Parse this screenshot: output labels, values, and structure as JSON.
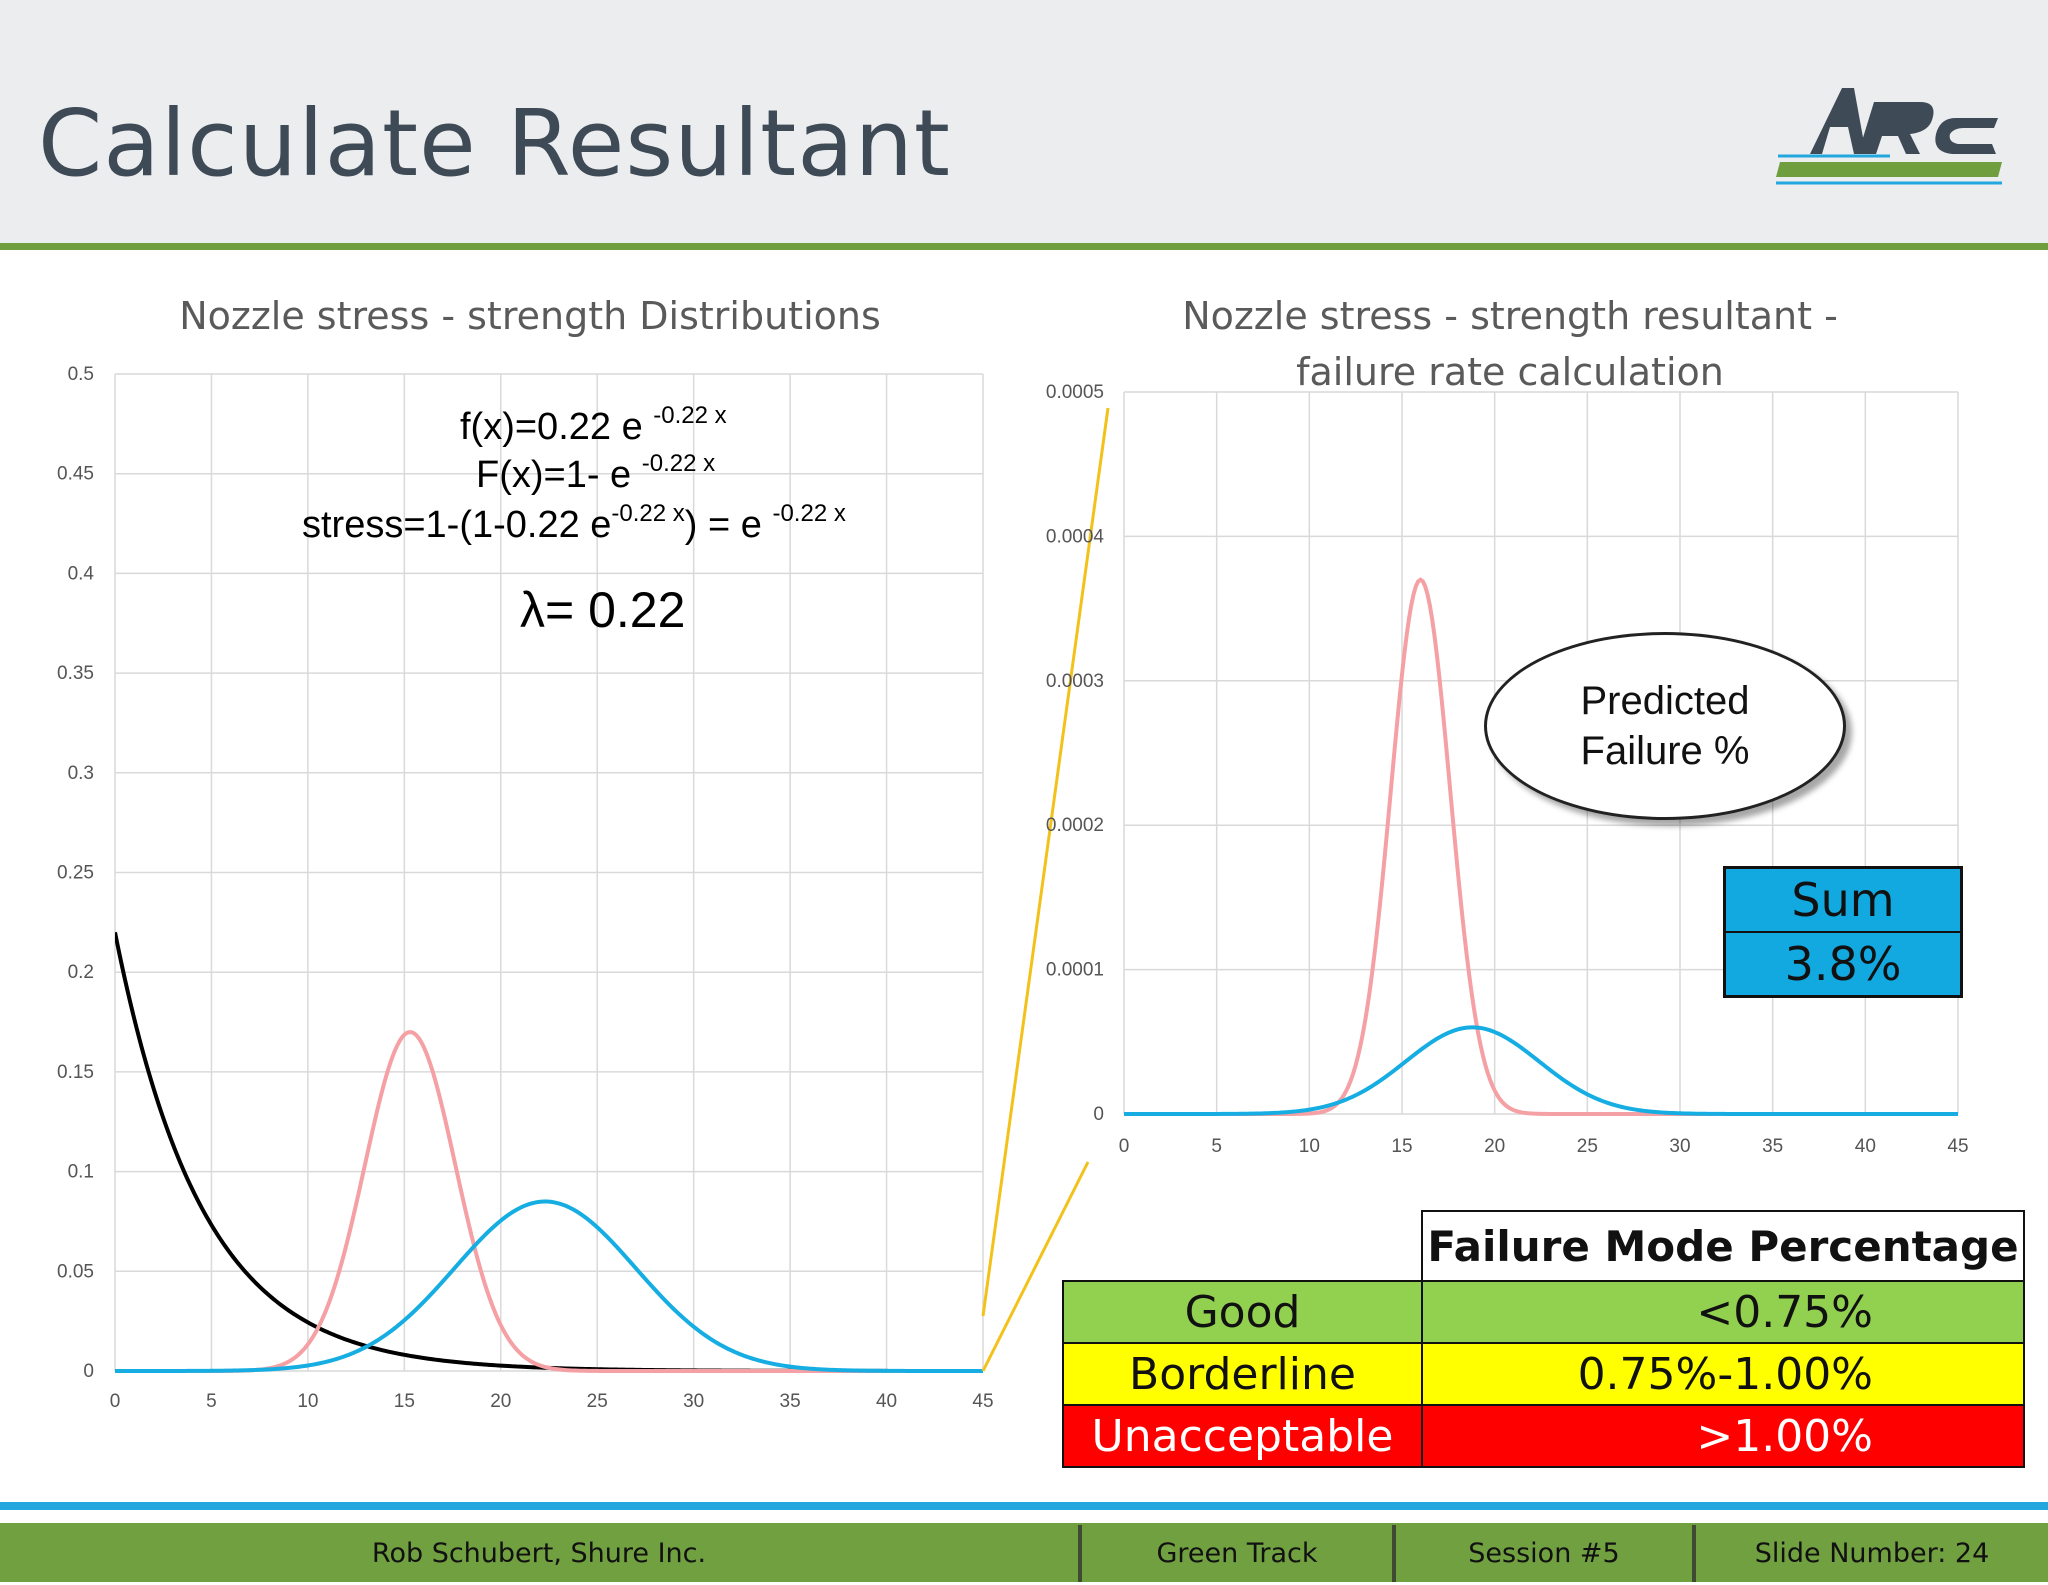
{
  "slide": {
    "title": "Calculate Resultant"
  },
  "logo": {
    "text": "ARC",
    "accent_green": "#6f9e3e",
    "accent_blue": "#22a8de"
  },
  "chart_data": [
    {
      "type": "line",
      "title": "Nozzle stress - strength Distributions",
      "xlim": [
        0,
        45
      ],
      "ylim": [
        0,
        0.5
      ],
      "x_ticks": [
        0,
        5,
        10,
        15,
        20,
        25,
        30,
        35,
        40,
        45
      ],
      "y_ticks": [
        "0",
        "0.05",
        "0.1",
        "0.15",
        "0.2",
        "0.25",
        "0.3",
        "0.35",
        "0.4",
        "0.45",
        "0.5"
      ],
      "grid": true,
      "series": [
        {
          "kind": "exponential",
          "lambda": 0.22,
          "color": "#000000"
        },
        {
          "kind": "normal",
          "mean": 15.3,
          "sd": 2.35,
          "peak": 0.17,
          "color": "#f4a0a4"
        },
        {
          "kind": "normal",
          "mean": 22.3,
          "sd": 4.7,
          "peak": 0.085,
          "color": "#16ade2"
        }
      ]
    },
    {
      "type": "line",
      "title": "Nozzle stress - strength resultant - failure rate calculation",
      "xlim": [
        0,
        45
      ],
      "ylim": [
        0,
        0.0005
      ],
      "x_ticks": [
        0,
        5,
        10,
        15,
        20,
        25,
        30,
        35,
        40,
        45
      ],
      "y_ticks": [
        "0",
        "0.0001",
        "0.0002",
        "0.0003",
        "0.0004",
        "0.0005"
      ],
      "grid": true,
      "series": [
        {
          "kind": "normal",
          "mean": 16.0,
          "sd": 1.6,
          "peak": 0.00037,
          "color": "#f4a0a4"
        },
        {
          "kind": "normal",
          "mean": 18.8,
          "sd": 3.6,
          "peak": 6e-05,
          "color": "#16ade2"
        }
      ]
    }
  ],
  "formula": {
    "f_line": "f(x)=0.22 e",
    "f_exp": "-0.22 x",
    "F_line": "F(x)=1- e",
    "F_exp": "-0.22 x",
    "stress_line_a": "stress=1-(1-0.22 e",
    "stress_exp_a": "-0.22 x",
    "stress_line_b": ") = e",
    "stress_exp_b": "-0.22 x",
    "lambda": "λ= 0.22"
  },
  "callout": {
    "line1": "Predicted",
    "line2": "Failure %"
  },
  "sum": {
    "label": "Sum",
    "value": "3.8%"
  },
  "failure_table": {
    "header": "Failure Mode Percentage",
    "rows": [
      {
        "label": "Good",
        "value": "<0.75%",
        "color": "#92d050",
        "text_color": "#111111"
      },
      {
        "label": "Borderline",
        "value": "0.75%-1.00%",
        "color": "#ffff00",
        "text_color": "#111111"
      },
      {
        "label": "Unacceptable",
        "value": ">1.00%",
        "color": "#ff0000",
        "text_color": "#ffffff"
      }
    ]
  },
  "footer": {
    "author": "Rob Schubert, Shure Inc.",
    "track": "Green Track",
    "session": "Session #5",
    "slide_number": "Slide Number: 24"
  }
}
